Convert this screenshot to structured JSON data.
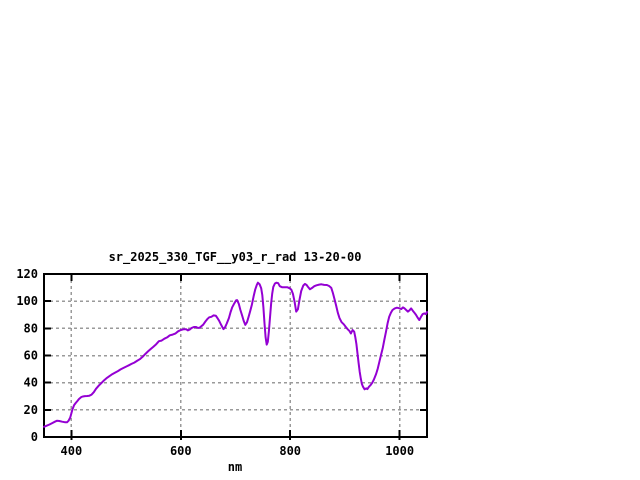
{
  "window": {
    "background": "#ffffff"
  },
  "chart_data": {
    "type": "line",
    "title": "sr_2025_330_TGF__y03_r_rad 13-20-00",
    "xlabel": "nm",
    "ylabel": "",
    "xlim": [
      350,
      1050
    ],
    "ylim": [
      0,
      120
    ],
    "xticks": [
      400,
      600,
      800,
      1000
    ],
    "yticks": [
      0,
      20,
      40,
      60,
      80,
      100,
      120
    ],
    "grid": true,
    "legend": "none",
    "grid_color": "#9a9a9a",
    "border_color": "#000000",
    "text_color": "#000000",
    "series": [
      {
        "name": "sr_2025_330_TGF__y03_r_rad",
        "color": "#9400D3",
        "points": [
          [
            350,
            7.5
          ],
          [
            355,
            8.3
          ],
          [
            360,
            9.2
          ],
          [
            365,
            10.2
          ],
          [
            370,
            11.3
          ],
          [
            374,
            12
          ],
          [
            378,
            11.8
          ],
          [
            383,
            11.3
          ],
          [
            388,
            10.9
          ],
          [
            392,
            10.8
          ],
          [
            395,
            12
          ],
          [
            398,
            14.5
          ],
          [
            400,
            17.5
          ],
          [
            402,
            20.5
          ],
          [
            405,
            23.5
          ],
          [
            408,
            25
          ],
          [
            411,
            26.5
          ],
          [
            414,
            28
          ],
          [
            418,
            29.4
          ],
          [
            421,
            29.8
          ],
          [
            425,
            30.1
          ],
          [
            429,
            30.2
          ],
          [
            433,
            30.4
          ],
          [
            437,
            31.2
          ],
          [
            441,
            33
          ],
          [
            445,
            35.5
          ],
          [
            450,
            37.8
          ],
          [
            455,
            39.8
          ],
          [
            460,
            41.8
          ],
          [
            465,
            43.5
          ],
          [
            470,
            45
          ],
          [
            475,
            46.3
          ],
          [
            480,
            47.4
          ],
          [
            485,
            48.5
          ],
          [
            490,
            49.8
          ],
          [
            495,
            50.8
          ],
          [
            500,
            51.8
          ],
          [
            505,
            52.8
          ],
          [
            510,
            53.8
          ],
          [
            515,
            54.8
          ],
          [
            520,
            56
          ],
          [
            525,
            57.3
          ],
          [
            530,
            59
          ],
          [
            535,
            61
          ],
          [
            540,
            63
          ],
          [
            545,
            64.8
          ],
          [
            550,
            66.5
          ],
          [
            555,
            68.3
          ],
          [
            560,
            70.5
          ],
          [
            565,
            71
          ],
          [
            570,
            72.4
          ],
          [
            575,
            73.3
          ],
          [
            580,
            74.9
          ],
          [
            585,
            75.4
          ],
          [
            590,
            76.1
          ],
          [
            595,
            77.8
          ],
          [
            600,
            78.8
          ],
          [
            605,
            79.3
          ],
          [
            610,
            79.3
          ],
          [
            613,
            78.5
          ],
          [
            617,
            79.3
          ],
          [
            620,
            80.3
          ],
          [
            624,
            81
          ],
          [
            628,
            81
          ],
          [
            631,
            80.3
          ],
          [
            634,
            80.3
          ],
          [
            638,
            81.7
          ],
          [
            641,
            82.7
          ],
          [
            645,
            85
          ],
          [
            649,
            87
          ],
          [
            652,
            88.1
          ],
          [
            656,
            88.5
          ],
          [
            660,
            89.5
          ],
          [
            664,
            89.3
          ],
          [
            667,
            87.6
          ],
          [
            670,
            85.6
          ],
          [
            673,
            83.2
          ],
          [
            676,
            80.8
          ],
          [
            678,
            79.4
          ],
          [
            681,
            80.8
          ],
          [
            684,
            83.5
          ],
          [
            688,
            87.5
          ],
          [
            691,
            92
          ],
          [
            694,
            95.5
          ],
          [
            698,
            98.5
          ],
          [
            701,
            100.5
          ],
          [
            703,
            100.8
          ],
          [
            706,
            98
          ],
          [
            709,
            93.5
          ],
          [
            712,
            89.5
          ],
          [
            715,
            85.5
          ],
          [
            718,
            82.5
          ],
          [
            721,
            84.5
          ],
          [
            724,
            88.5
          ],
          [
            727,
            93
          ],
          [
            730,
            97.5
          ],
          [
            733,
            103.5
          ],
          [
            736,
            108.5
          ],
          [
            739,
            112
          ],
          [
            741,
            113.6
          ],
          [
            744,
            112.5
          ],
          [
            747,
            109.5
          ],
          [
            749,
            104.5
          ],
          [
            751,
            95.5
          ],
          [
            753,
            83.7
          ],
          [
            755,
            73.5
          ],
          [
            757,
            68
          ],
          [
            759,
            70
          ],
          [
            761,
            78
          ],
          [
            763,
            88
          ],
          [
            765,
            98
          ],
          [
            767,
            105.5
          ],
          [
            769,
            110.5
          ],
          [
            772,
            113
          ],
          [
            775,
            113.6
          ],
          [
            778,
            113.2
          ],
          [
            781,
            111
          ],
          [
            785,
            110.3
          ],
          [
            790,
            110.2
          ],
          [
            795,
            110.2
          ],
          [
            799,
            109.5
          ],
          [
            802,
            108.5
          ],
          [
            805,
            105.5
          ],
          [
            808,
            99.5
          ],
          [
            811,
            92.3
          ],
          [
            814,
            94
          ],
          [
            817,
            101
          ],
          [
            820,
            107.5
          ],
          [
            824,
            111.5
          ],
          [
            827,
            112.7
          ],
          [
            830,
            111.9
          ],
          [
            833,
            110.2
          ],
          [
            836,
            108.7
          ],
          [
            840,
            109.8
          ],
          [
            844,
            111
          ],
          [
            848,
            111.7
          ],
          [
            853,
            112.2
          ],
          [
            857,
            112.4
          ],
          [
            862,
            112
          ],
          [
            867,
            111.9
          ],
          [
            871,
            111.2
          ],
          [
            875,
            109.8
          ],
          [
            878,
            106
          ],
          [
            881,
            101.5
          ],
          [
            884,
            96.5
          ],
          [
            887,
            91.5
          ],
          [
            890,
            87.5
          ],
          [
            894,
            84.5
          ],
          [
            898,
            83
          ],
          [
            902,
            80.8
          ],
          [
            905,
            79.3
          ],
          [
            908,
            78.2
          ],
          [
            911,
            76.2
          ],
          [
            914,
            78.8
          ],
          [
            917,
            77.5
          ],
          [
            919,
            73.5
          ],
          [
            921,
            68.5
          ],
          [
            923,
            61.5
          ],
          [
            925,
            54.5
          ],
          [
            927,
            48
          ],
          [
            929,
            43
          ],
          [
            931,
            39
          ],
          [
            933,
            37
          ],
          [
            936,
            35.1
          ],
          [
            939,
            35.8
          ],
          [
            941,
            35.3
          ],
          [
            944,
            37
          ],
          [
            947,
            38.2
          ],
          [
            950,
            40
          ],
          [
            953,
            42.3
          ],
          [
            957,
            46.4
          ],
          [
            960,
            50.5
          ],
          [
            963,
            55.4
          ],
          [
            966,
            60.4
          ],
          [
            969,
            65.3
          ],
          [
            972,
            71.4
          ],
          [
            975,
            77.5
          ],
          [
            978,
            83.7
          ],
          [
            981,
            88.5
          ],
          [
            984,
            91.5
          ],
          [
            987,
            93.5
          ],
          [
            991,
            94.7
          ],
          [
            995,
            95.2
          ],
          [
            999,
            94.8
          ],
          [
            1003,
            94.2
          ],
          [
            1006,
            95.4
          ],
          [
            1009,
            94.7
          ],
          [
            1012,
            93.5
          ],
          [
            1015,
            92.3
          ],
          [
            1018,
            93.3
          ],
          [
            1021,
            94.7
          ],
          [
            1024,
            93
          ],
          [
            1027,
            91.5
          ],
          [
            1030,
            89.8
          ],
          [
            1033,
            87.8
          ],
          [
            1036,
            86.1
          ],
          [
            1039,
            88.5
          ],
          [
            1042,
            90.4
          ],
          [
            1045,
            91
          ],
          [
            1048,
            90.5
          ],
          [
            1050,
            92
          ]
        ]
      }
    ]
  }
}
